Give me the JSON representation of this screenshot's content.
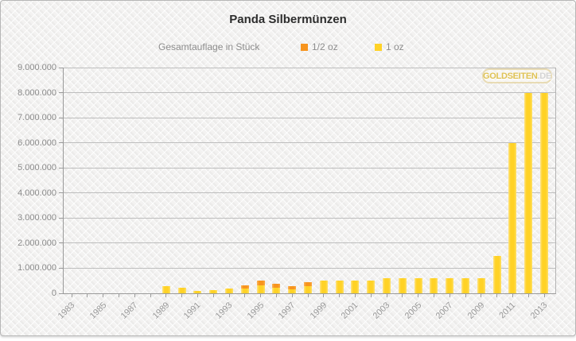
{
  "title": "Panda Silbermünzen",
  "legend": {
    "label": "Gesamtauflage in Stück",
    "items": [
      {
        "name": "1/2 oz",
        "color": "#F7941D"
      },
      {
        "name": "1 oz",
        "color": "#FFD226"
      }
    ]
  },
  "watermark": {
    "text_main": "GOLDSEITEN",
    "text_suffix": ".DE"
  },
  "chart_data": {
    "type": "bar",
    "stacked": true,
    "title": "Panda Silbermünzen",
    "subtitle": "Gesamtauflage in Stück",
    "xlabel": "",
    "ylabel": "",
    "grid": true,
    "legend_position": "top",
    "ylim": [
      0,
      9000000
    ],
    "y_tick_step": 1000000,
    "y_tick_labels": [
      "0",
      "1.000.000",
      "2.000.000",
      "3.000.000",
      "4.000.000",
      "5.000.000",
      "6.000.000",
      "7.000.000",
      "8.000.000",
      "9.000.000"
    ],
    "x": [
      1983,
      1984,
      1985,
      1986,
      1987,
      1988,
      1989,
      1990,
      1991,
      1992,
      1993,
      1994,
      1995,
      1996,
      1997,
      1998,
      1999,
      2000,
      2001,
      2002,
      2003,
      2004,
      2005,
      2006,
      2007,
      2008,
      2009,
      2010,
      2011,
      2012,
      2013
    ],
    "x_label_every": 2,
    "x_tick_labels": [
      "1983",
      "1985",
      "1987",
      "1989",
      "1991",
      "1993",
      "1995",
      "1997",
      "1999",
      "2001",
      "2003",
      "2005",
      "2007",
      "2009",
      "2011",
      "2013"
    ],
    "series": [
      {
        "name": "1/2 oz",
        "color": "#F7941D",
        "values": [
          0,
          0,
          0,
          0,
          0,
          0,
          0,
          0,
          0,
          0,
          0,
          130000,
          190000,
          160000,
          130000,
          190000,
          0,
          0,
          0,
          0,
          0,
          0,
          0,
          0,
          0,
          0,
          0,
          0,
          0,
          0,
          0
        ]
      },
      {
        "name": "1 oz",
        "color": "#FFD226",
        "values": [
          0,
          0,
          0,
          0,
          0,
          0,
          300000,
          220000,
          100000,
          120000,
          200000,
          200000,
          320000,
          220000,
          170000,
          270000,
          500000,
          500000,
          500000,
          500000,
          600000,
          600000,
          600000,
          600000,
          600000,
          600000,
          600000,
          1500000,
          6000000,
          8000000,
          8000000
        ]
      }
    ]
  }
}
